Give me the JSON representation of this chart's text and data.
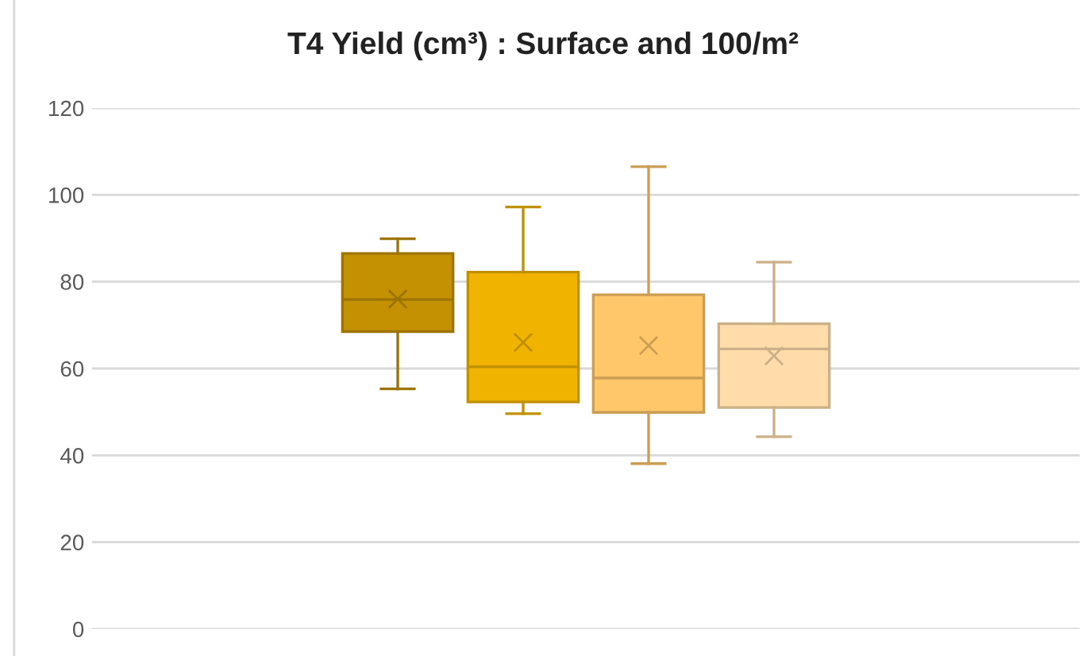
{
  "chart_data": {
    "type": "box",
    "title": "T4 Yield (cm³) : Surface and 100/m²",
    "categories": [
      null
    ],
    "series": [
      {
        "color": "#c49102",
        "boxes": [
          {
            "low": 55.3,
            "q1": 68.5,
            "median": 75.9,
            "q3": 86.5,
            "high": 89.9,
            "mean": 76
          }
        ]
      },
      {
        "color": "#f0b400",
        "boxes": [
          {
            "low": 49.6,
            "q1": 52.3,
            "median": 60.4,
            "q3": 82.2,
            "high": 97.2,
            "mean": 66
          }
        ]
      },
      {
        "color": "#ffc66a",
        "boxes": [
          {
            "low": 38.1,
            "q1": 49.9,
            "median": 57.8,
            "q3": 77,
            "high": 106.5,
            "mean": 65.3
          }
        ]
      },
      {
        "color": "#ffdcaa",
        "boxes": [
          {
            "low": 44.3,
            "q1": 51,
            "median": 64.5,
            "q3": 70.3,
            "high": 84.5,
            "mean": 62.9
          }
        ]
      }
    ],
    "ylim": [
      0,
      120
    ],
    "yticks": [
      0,
      20,
      40,
      60,
      80,
      100,
      120
    ],
    "grid": "y",
    "tick_labels": "y"
  }
}
